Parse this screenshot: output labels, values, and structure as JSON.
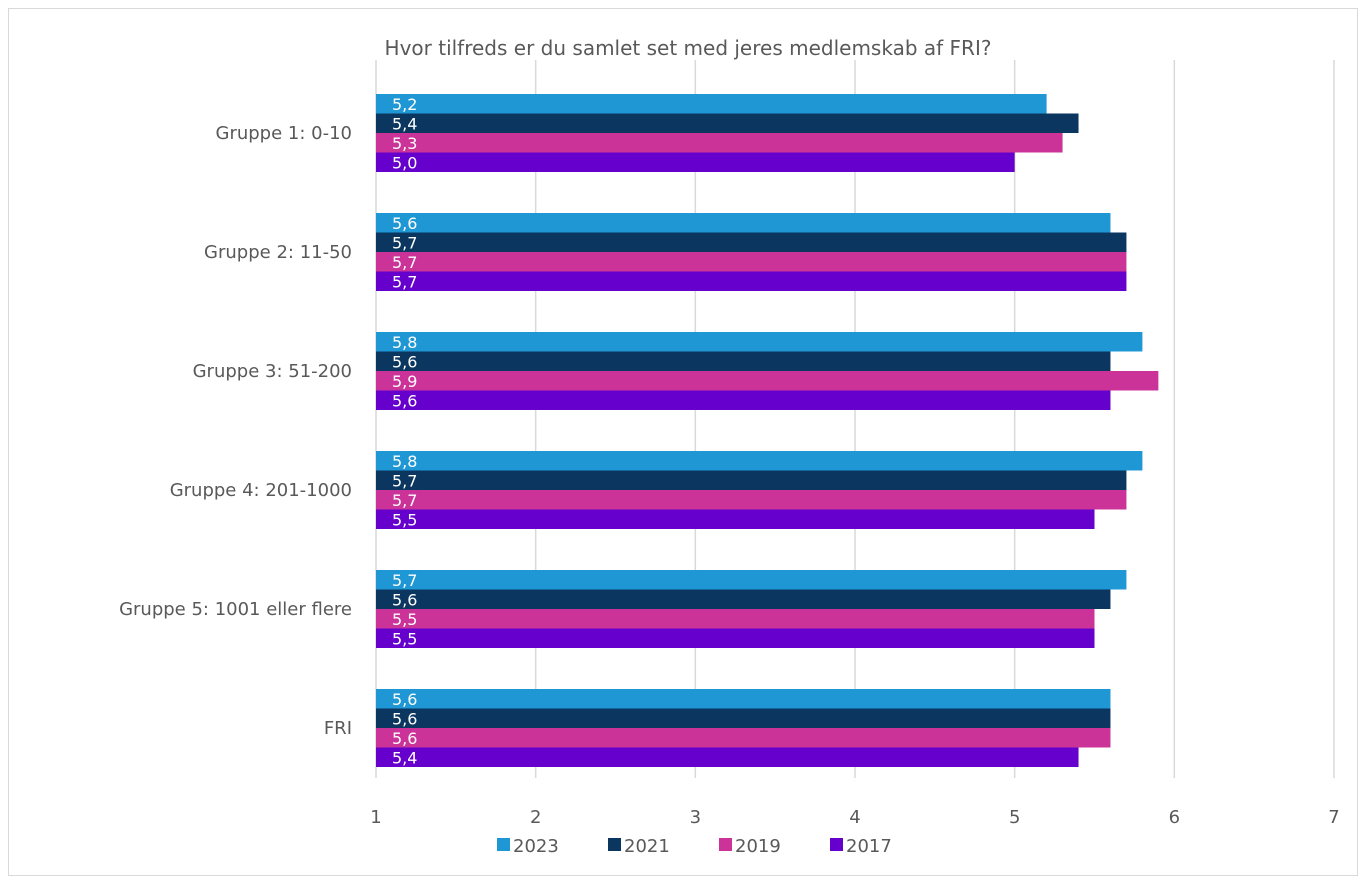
{
  "chart_data": {
    "type": "bar",
    "orientation": "horizontal",
    "title": "Hvor tilfreds er du samlet set med jeres medlemskab af FRI?",
    "categories": [
      "Gruppe 1: 0-10",
      "Gruppe 2: 11-50",
      "Gruppe 3: 51-200",
      "Gruppe 4: 201-1000",
      "Gruppe 5: 1001 eller flere",
      "FRI"
    ],
    "series": [
      {
        "name": "2023",
        "color": "#1f97d4",
        "values": [
          5.2,
          5.6,
          5.8,
          5.8,
          5.7,
          5.6
        ],
        "labels": [
          "5,2",
          "5,6",
          "5,8",
          "5,8",
          "5,7",
          "5,6"
        ]
      },
      {
        "name": "2021",
        "color": "#0b3660",
        "values": [
          5.4,
          5.7,
          5.6,
          5.7,
          5.6,
          5.6
        ],
        "labels": [
          "5,4",
          "5,7",
          "5,6",
          "5,7",
          "5,6",
          "5,6"
        ]
      },
      {
        "name": "2019",
        "color": "#cc3399",
        "values": [
          5.3,
          5.7,
          5.9,
          5.7,
          5.5,
          5.6
        ],
        "labels": [
          "5,3",
          "5,7",
          "5,9",
          "5,7",
          "5,5",
          "5,6"
        ]
      },
      {
        "name": "2017",
        "color": "#6600cc",
        "values": [
          5.0,
          5.7,
          5.6,
          5.5,
          5.5,
          5.4
        ],
        "labels": [
          "5,0",
          "5,7",
          "5,6",
          "5,5",
          "5,5",
          "5,4"
        ]
      }
    ],
    "xlim": [
      1,
      7
    ],
    "xticks": [
      "1",
      "2",
      "3",
      "4",
      "5",
      "6",
      "7"
    ],
    "grid": "vertical",
    "legend": "bottom"
  }
}
